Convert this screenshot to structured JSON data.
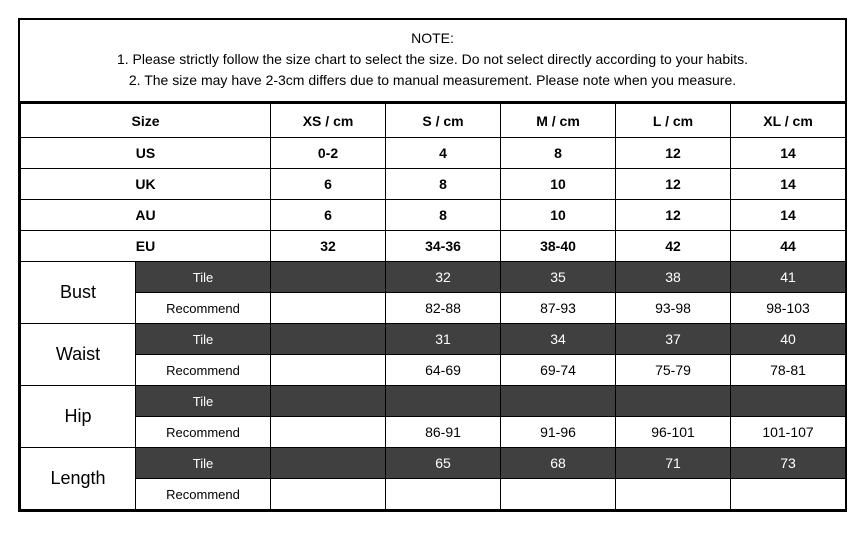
{
  "note": {
    "title": "NOTE:",
    "line1": "1. Please strictly follow the size chart  to select the size. Do not select directly according to your habits.",
    "line2": "2. The size may have 2-3cm differs due to manual measurement. Please note when you measure."
  },
  "headers": {
    "size": "Size",
    "xs": "XS / cm",
    "s": "S / cm",
    "m": "M / cm",
    "l": "L / cm",
    "xl": "XL / cm"
  },
  "regions": {
    "us": {
      "label": "US",
      "xs": "0-2",
      "s": "4",
      "m": "8",
      "l": "12",
      "xl": "14"
    },
    "uk": {
      "label": "UK",
      "xs": "6",
      "s": "8",
      "m": "10",
      "l": "12",
      "xl": "14"
    },
    "au": {
      "label": "AU",
      "xs": "6",
      "s": "8",
      "m": "10",
      "l": "12",
      "xl": "14"
    },
    "eu": {
      "label": "EU",
      "xs": "32",
      "s": "34-36",
      "m": "38-40",
      "l": "42",
      "xl": "44"
    }
  },
  "sublabels": {
    "tile": "Tile",
    "recommend": "Recommend"
  },
  "measures": {
    "bust": {
      "label": "Bust",
      "tile": {
        "xs": "",
        "s": "32",
        "m": "35",
        "l": "38",
        "xl": "41"
      },
      "recommend": {
        "xs": "",
        "s": "82-88",
        "m": "87-93",
        "l": "93-98",
        "xl": "98-103"
      }
    },
    "waist": {
      "label": "Waist",
      "tile": {
        "xs": "",
        "s": "31",
        "m": "34",
        "l": "37",
        "xl": "40"
      },
      "recommend": {
        "xs": "",
        "s": "64-69",
        "m": "69-74",
        "l": "75-79",
        "xl": "78-81"
      }
    },
    "hip": {
      "label": "Hip",
      "tile": {
        "xs": "",
        "s": "",
        "m": "",
        "l": "",
        "xl": ""
      },
      "recommend": {
        "xs": "",
        "s": "86-91",
        "m": "91-96",
        "l": "96-101",
        "xl": "101-107"
      }
    },
    "length": {
      "label": "Length",
      "tile": {
        "xs": "",
        "s": "65",
        "m": "68",
        "l": "71",
        "xl": "73"
      },
      "recommend": {
        "xs": "",
        "s": "",
        "m": "",
        "l": "",
        "xl": ""
      }
    }
  },
  "colors": {
    "dark_bg": "#404040",
    "dark_text": "#ffffff",
    "border": "#000000",
    "background": "#ffffff"
  }
}
